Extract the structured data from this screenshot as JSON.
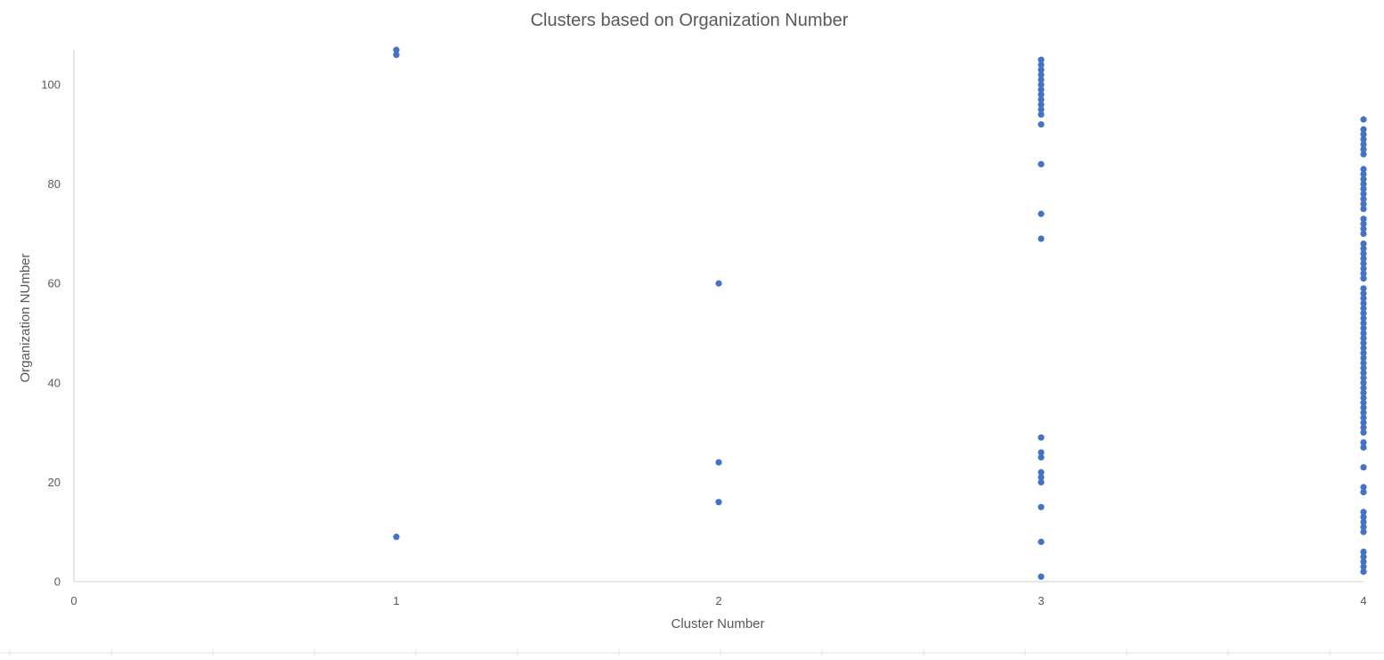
{
  "chart_data": {
    "type": "scatter",
    "title": "Clusters based on Organization Number",
    "xlabel": "Cluster Number",
    "ylabel": "Organization NUmber",
    "xlim": [
      0,
      4
    ],
    "ylim": [
      0,
      107
    ],
    "x_ticks": [
      "0",
      "1",
      "2",
      "3",
      "4"
    ],
    "y_ticks": [
      "0",
      "20",
      "40",
      "60",
      "80",
      "100"
    ],
    "grid": false,
    "legend": "none",
    "marker_color": "#4472c4",
    "points": [
      {
        "x": 1,
        "y": 107
      },
      {
        "x": 1,
        "y": 106
      },
      {
        "x": 1,
        "y": 9
      },
      {
        "x": 2,
        "y": 60
      },
      {
        "x": 2,
        "y": 24
      },
      {
        "x": 2,
        "y": 16
      },
      {
        "x": 3,
        "y": 105
      },
      {
        "x": 3,
        "y": 104
      },
      {
        "x": 3,
        "y": 103
      },
      {
        "x": 3,
        "y": 102
      },
      {
        "x": 3,
        "y": 101
      },
      {
        "x": 3,
        "y": 100
      },
      {
        "x": 3,
        "y": 99
      },
      {
        "x": 3,
        "y": 98
      },
      {
        "x": 3,
        "y": 97
      },
      {
        "x": 3,
        "y": 96
      },
      {
        "x": 3,
        "y": 95
      },
      {
        "x": 3,
        "y": 94
      },
      {
        "x": 3,
        "y": 92
      },
      {
        "x": 3,
        "y": 84
      },
      {
        "x": 3,
        "y": 74
      },
      {
        "x": 3,
        "y": 69
      },
      {
        "x": 3,
        "y": 29
      },
      {
        "x": 3,
        "y": 26
      },
      {
        "x": 3,
        "y": 25
      },
      {
        "x": 3,
        "y": 22
      },
      {
        "x": 3,
        "y": 21
      },
      {
        "x": 3,
        "y": 20
      },
      {
        "x": 3,
        "y": 15
      },
      {
        "x": 3,
        "y": 8
      },
      {
        "x": 3,
        "y": 1
      },
      {
        "x": 4,
        "y": 93
      },
      {
        "x": 4,
        "y": 91
      },
      {
        "x": 4,
        "y": 90
      },
      {
        "x": 4,
        "y": 89
      },
      {
        "x": 4,
        "y": 88
      },
      {
        "x": 4,
        "y": 87
      },
      {
        "x": 4,
        "y": 86
      },
      {
        "x": 4,
        "y": 83
      },
      {
        "x": 4,
        "y": 82
      },
      {
        "x": 4,
        "y": 81
      },
      {
        "x": 4,
        "y": 80
      },
      {
        "x": 4,
        "y": 79
      },
      {
        "x": 4,
        "y": 78
      },
      {
        "x": 4,
        "y": 77
      },
      {
        "x": 4,
        "y": 76
      },
      {
        "x": 4,
        "y": 75
      },
      {
        "x": 4,
        "y": 73
      },
      {
        "x": 4,
        "y": 72
      },
      {
        "x": 4,
        "y": 71
      },
      {
        "x": 4,
        "y": 70
      },
      {
        "x": 4,
        "y": 68
      },
      {
        "x": 4,
        "y": 67
      },
      {
        "x": 4,
        "y": 66
      },
      {
        "x": 4,
        "y": 65
      },
      {
        "x": 4,
        "y": 64
      },
      {
        "x": 4,
        "y": 63
      },
      {
        "x": 4,
        "y": 62
      },
      {
        "x": 4,
        "y": 61
      },
      {
        "x": 4,
        "y": 59
      },
      {
        "x": 4,
        "y": 58
      },
      {
        "x": 4,
        "y": 57
      },
      {
        "x": 4,
        "y": 56
      },
      {
        "x": 4,
        "y": 55
      },
      {
        "x": 4,
        "y": 54
      },
      {
        "x": 4,
        "y": 53
      },
      {
        "x": 4,
        "y": 52
      },
      {
        "x": 4,
        "y": 51
      },
      {
        "x": 4,
        "y": 50
      },
      {
        "x": 4,
        "y": 49
      },
      {
        "x": 4,
        "y": 48
      },
      {
        "x": 4,
        "y": 47
      },
      {
        "x": 4,
        "y": 46
      },
      {
        "x": 4,
        "y": 45
      },
      {
        "x": 4,
        "y": 44
      },
      {
        "x": 4,
        "y": 43
      },
      {
        "x": 4,
        "y": 42
      },
      {
        "x": 4,
        "y": 41
      },
      {
        "x": 4,
        "y": 40
      },
      {
        "x": 4,
        "y": 39
      },
      {
        "x": 4,
        "y": 38
      },
      {
        "x": 4,
        "y": 37
      },
      {
        "x": 4,
        "y": 36
      },
      {
        "x": 4,
        "y": 35
      },
      {
        "x": 4,
        "y": 34
      },
      {
        "x": 4,
        "y": 33
      },
      {
        "x": 4,
        "y": 32
      },
      {
        "x": 4,
        "y": 31
      },
      {
        "x": 4,
        "y": 30
      },
      {
        "x": 4,
        "y": 28
      },
      {
        "x": 4,
        "y": 27
      },
      {
        "x": 4,
        "y": 23
      },
      {
        "x": 4,
        "y": 19
      },
      {
        "x": 4,
        "y": 18
      },
      {
        "x": 4,
        "y": 14
      },
      {
        "x": 4,
        "y": 13
      },
      {
        "x": 4,
        "y": 12
      },
      {
        "x": 4,
        "y": 11
      },
      {
        "x": 4,
        "y": 10
      },
      {
        "x": 4,
        "y": 6
      },
      {
        "x": 4,
        "y": 5
      },
      {
        "x": 4,
        "y": 4
      },
      {
        "x": 4,
        "y": 3
      },
      {
        "x": 4,
        "y": 2
      }
    ]
  }
}
